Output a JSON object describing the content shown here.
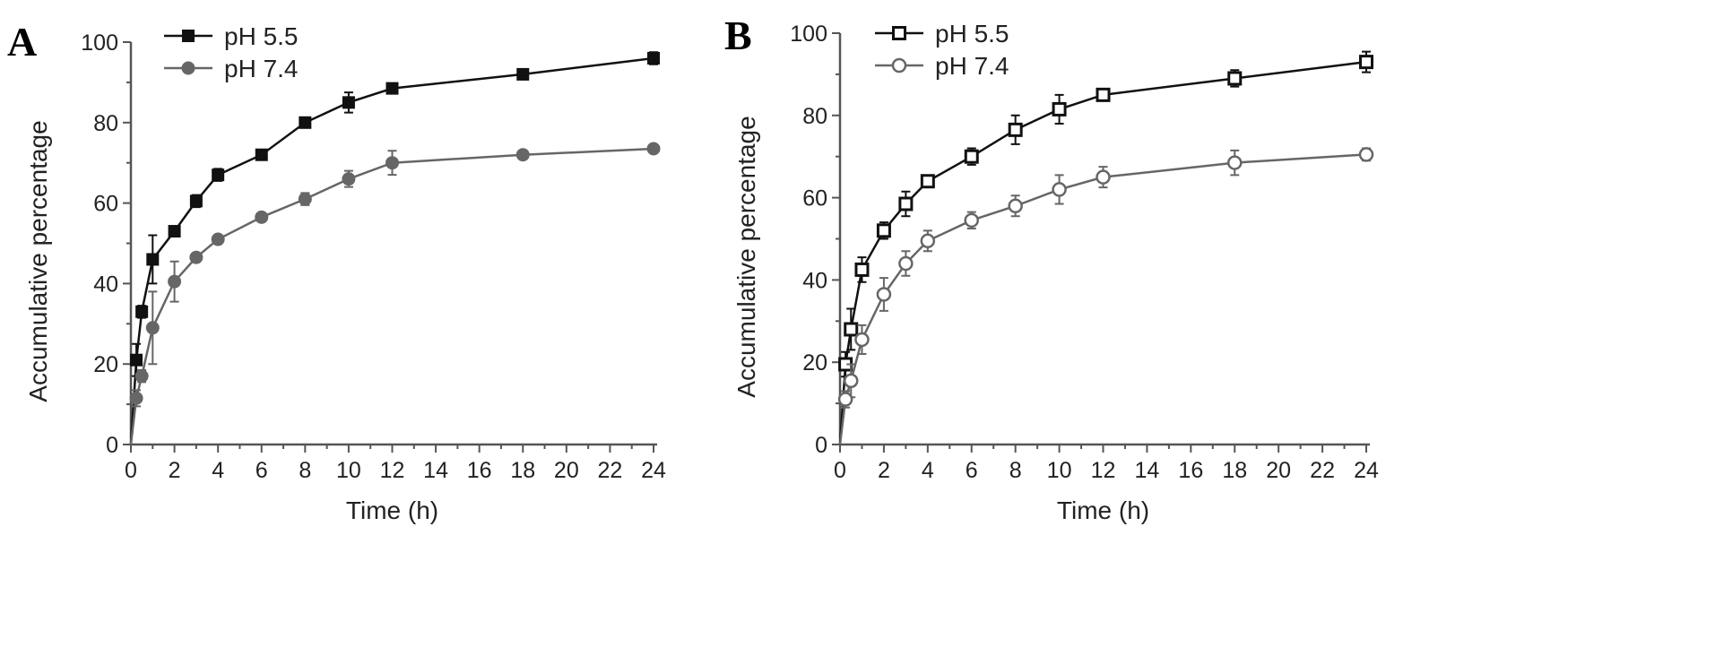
{
  "chart_data": [
    {
      "panel": "A",
      "type": "line",
      "xlabel": "Time (h)",
      "ylabel": "Accumulative percentage",
      "xlim": [
        0,
        24
      ],
      "ylim": [
        0,
        100
      ],
      "xticks": [
        0,
        2,
        4,
        6,
        8,
        10,
        12,
        14,
        16,
        18,
        20,
        22,
        24
      ],
      "yticks": [
        0,
        20,
        40,
        60,
        80,
        100
      ],
      "legend": "top-left",
      "x": [
        0,
        0.25,
        0.5,
        1,
        2,
        3,
        4,
        6,
        8,
        10,
        12,
        18,
        24
      ],
      "series": [
        {
          "name": "pH 5.5",
          "marker": "filled-square",
          "color": "#111111",
          "values": [
            0,
            21,
            33,
            46,
            53,
            60.5,
            67,
            72,
            80,
            85,
            88.5,
            92,
            96
          ],
          "errors": [
            0,
            4,
            1.5,
            6,
            1,
            1.5,
            1.5,
            1,
            1,
            2.5,
            1,
            1,
            1.5
          ]
        },
        {
          "name": "pH 7.4",
          "marker": "filled-circle",
          "color": "#666666",
          "values": [
            0,
            11.5,
            17,
            29,
            40.5,
            46.5,
            51,
            56.5,
            61,
            66,
            70,
            72,
            73.5
          ],
          "errors": [
            0,
            2,
            1.5,
            9,
            5,
            1,
            1,
            1,
            1.5,
            2,
            3,
            1,
            1
          ]
        }
      ]
    },
    {
      "panel": "B",
      "type": "line",
      "xlabel": "Time (h)",
      "ylabel": "Accumulative percentage",
      "xlim": [
        0,
        24
      ],
      "ylim": [
        0,
        100
      ],
      "xticks": [
        0,
        2,
        4,
        6,
        8,
        10,
        12,
        14,
        16,
        18,
        20,
        22,
        24
      ],
      "yticks": [
        0,
        20,
        40,
        60,
        80,
        100
      ],
      "legend": "top-left",
      "x": [
        0,
        0.25,
        0.5,
        1,
        2,
        3,
        4,
        6,
        8,
        10,
        12,
        18,
        24
      ],
      "series": [
        {
          "name": "pH 5.5",
          "marker": "open-square",
          "color": "#111111",
          "values": [
            0,
            19.5,
            28,
            42.5,
            52,
            58.5,
            64,
            70,
            76.5,
            81.5,
            85,
            89,
            93
          ],
          "errors": [
            0,
            3,
            5,
            3,
            2,
            3,
            1,
            2,
            3.5,
            3.5,
            1,
            2,
            2.5
          ]
        },
        {
          "name": "pH 7.4",
          "marker": "open-circle",
          "color": "#666666",
          "values": [
            0,
            11,
            15.5,
            25.5,
            36.5,
            44,
            49.5,
            54.5,
            58,
            62,
            65,
            68.5,
            70.5
          ],
          "errors": [
            0,
            2,
            4,
            3.5,
            4,
            3,
            2.5,
            2,
            2.5,
            3.5,
            2.5,
            3,
            1.5
          ]
        }
      ]
    }
  ]
}
